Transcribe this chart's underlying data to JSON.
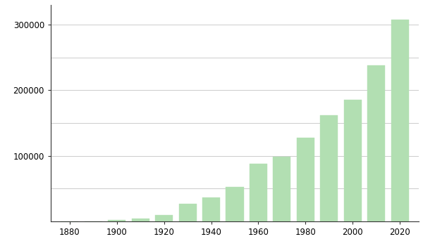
{
  "years": [
    1880,
    1890,
    1900,
    1910,
    1920,
    1930,
    1940,
    1950,
    1960,
    1970,
    1980,
    1990,
    2000,
    2010,
    2020
  ],
  "values": [
    200,
    500,
    2000,
    3800,
    9300,
    27000,
    36000,
    52000,
    88000,
    99000,
    128000,
    162000,
    185000,
    238000,
    307573
  ],
  "bar_color": "#b2dfb2",
  "background_color": "#ffffff",
  "grid_color": "#cccccc",
  "ylim": [
    0,
    330000
  ],
  "ytick_labeled": [
    100000,
    200000,
    300000
  ],
  "ytick_minor": [
    50000,
    150000,
    250000
  ],
  "xticks": [
    1880,
    1900,
    1920,
    1940,
    1960,
    1980,
    2000,
    2020
  ],
  "tick_fontsize": 8.5,
  "bar_width": 7.5,
  "xlim_left": 1872,
  "xlim_right": 2028
}
